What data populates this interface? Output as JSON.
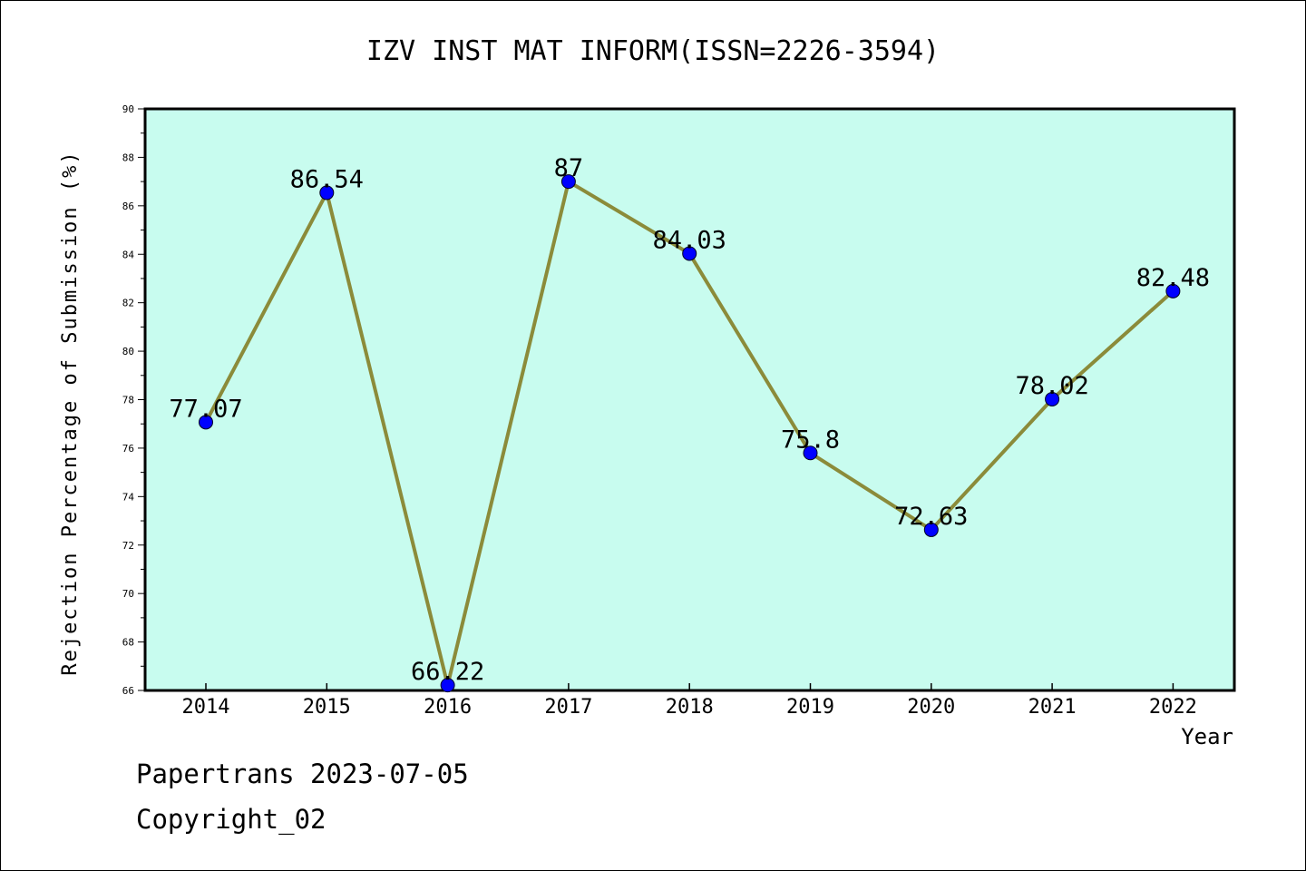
{
  "chart_data": {
    "type": "line",
    "title": "IZV INST MAT INFORM(ISSN=2226-3594)",
    "xlabel": "Year",
    "ylabel": "Rejection Percentage of Submission (%)",
    "categories": [
      "2014",
      "2015",
      "2016",
      "2017",
      "2018",
      "2019",
      "2020",
      "2021",
      "2022"
    ],
    "values": [
      77.07,
      86.54,
      66.22,
      87,
      84.03,
      75.8,
      72.63,
      78.02,
      82.48
    ],
    "data_labels": [
      "77.07",
      "86.54",
      "66.22",
      "87",
      "84.03",
      "75.8",
      "72.63",
      "78.02",
      "82.48"
    ],
    "ylim": [
      66,
      90
    ],
    "yticks": [
      "66",
      "68",
      "70",
      "72",
      "74",
      "76",
      "78",
      "80",
      "82",
      "84",
      "86",
      "88",
      "90"
    ],
    "grid": false,
    "legend": "none",
    "colors": {
      "plot_background": "#c8fcef",
      "line": "#8b8b3a",
      "marker": "#0000ff"
    }
  },
  "footer": {
    "source": "Papertrans 2023-07-05",
    "copyright": "Copyright_02"
  }
}
